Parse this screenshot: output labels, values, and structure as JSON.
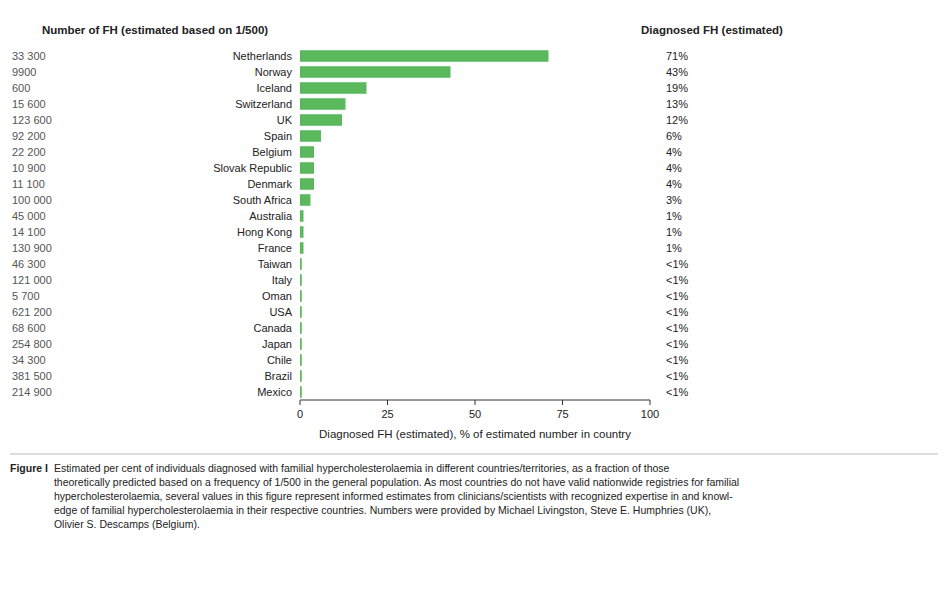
{
  "chart_data": {
    "type": "bar",
    "orientation": "horizontal",
    "categories": [
      "Netherlands",
      "Norway",
      "Iceland",
      "Switzerland",
      "UK",
      "Spain",
      "Belgium",
      "Slovak Republic",
      "Denmark",
      "South Africa",
      "Australia",
      "Hong Kong",
      "France",
      "Taiwan",
      "Italy",
      "Oman",
      "USA",
      "Canada",
      "Japan",
      "Chile",
      "Brazil",
      "Mexico"
    ],
    "values": [
      71,
      43,
      19,
      13,
      12,
      6,
      4,
      4,
      4,
      3,
      1,
      1,
      1,
      0.5,
      0.5,
      0.5,
      0.5,
      0.5,
      0.5,
      0.5,
      0.5,
      0.5
    ],
    "value_labels": [
      "71%",
      "43%",
      "19%",
      "13%",
      "12%",
      "6%",
      "4%",
      "4%",
      "4%",
      "3%",
      "1%",
      "1%",
      "1%",
      "<1%",
      "<1%",
      "<1%",
      "<1%",
      "<1%",
      "<1%",
      "<1%",
      "<1%",
      "<1%"
    ],
    "data_labels": true,
    "fh_numbers": [
      "33 300",
      "9900",
      "600",
      "15 600",
      "123 600",
      "92 200",
      "22 200",
      "10 900",
      "11 100",
      "100 000",
      "45 000",
      "14 100",
      "130 900",
      "46 300",
      "121 000",
      "5 700",
      "621 200",
      "68 600",
      "254 800",
      "34 300",
      "381 500",
      "214 900"
    ],
    "color": "#5cb85c",
    "xlabel": "Diagnosed FH (estimated), % of estimated number in country",
    "xlim": [
      0,
      100
    ],
    "xticks": [
      0,
      25,
      50,
      75,
      100
    ],
    "grid": false,
    "header_left": "Number of FH (estimated based on 1/500)",
    "header_right": "Diagnosed FH (estimated)",
    "caption_title": "Figure I",
    "caption": "Estimated per cent of individuals diagnosed with familial hypercholesterolaemia in different countries/territories, as a fraction of those\ntheoretically predicted based on a frequency of 1/500 in the general population. As most countries do not have valid nationwide registries for familial\nhypercholesterolaemia, several values in this figure represent informed estimates from clinicians/scientists with recognized expertise in and knowl-\nedge of familial hypercholesterolaemia in their respective countries. Numbers were provided by Michael Livingston, Steve E. Humphries (UK),\nOlivier S. Descamps (Belgium)."
  }
}
